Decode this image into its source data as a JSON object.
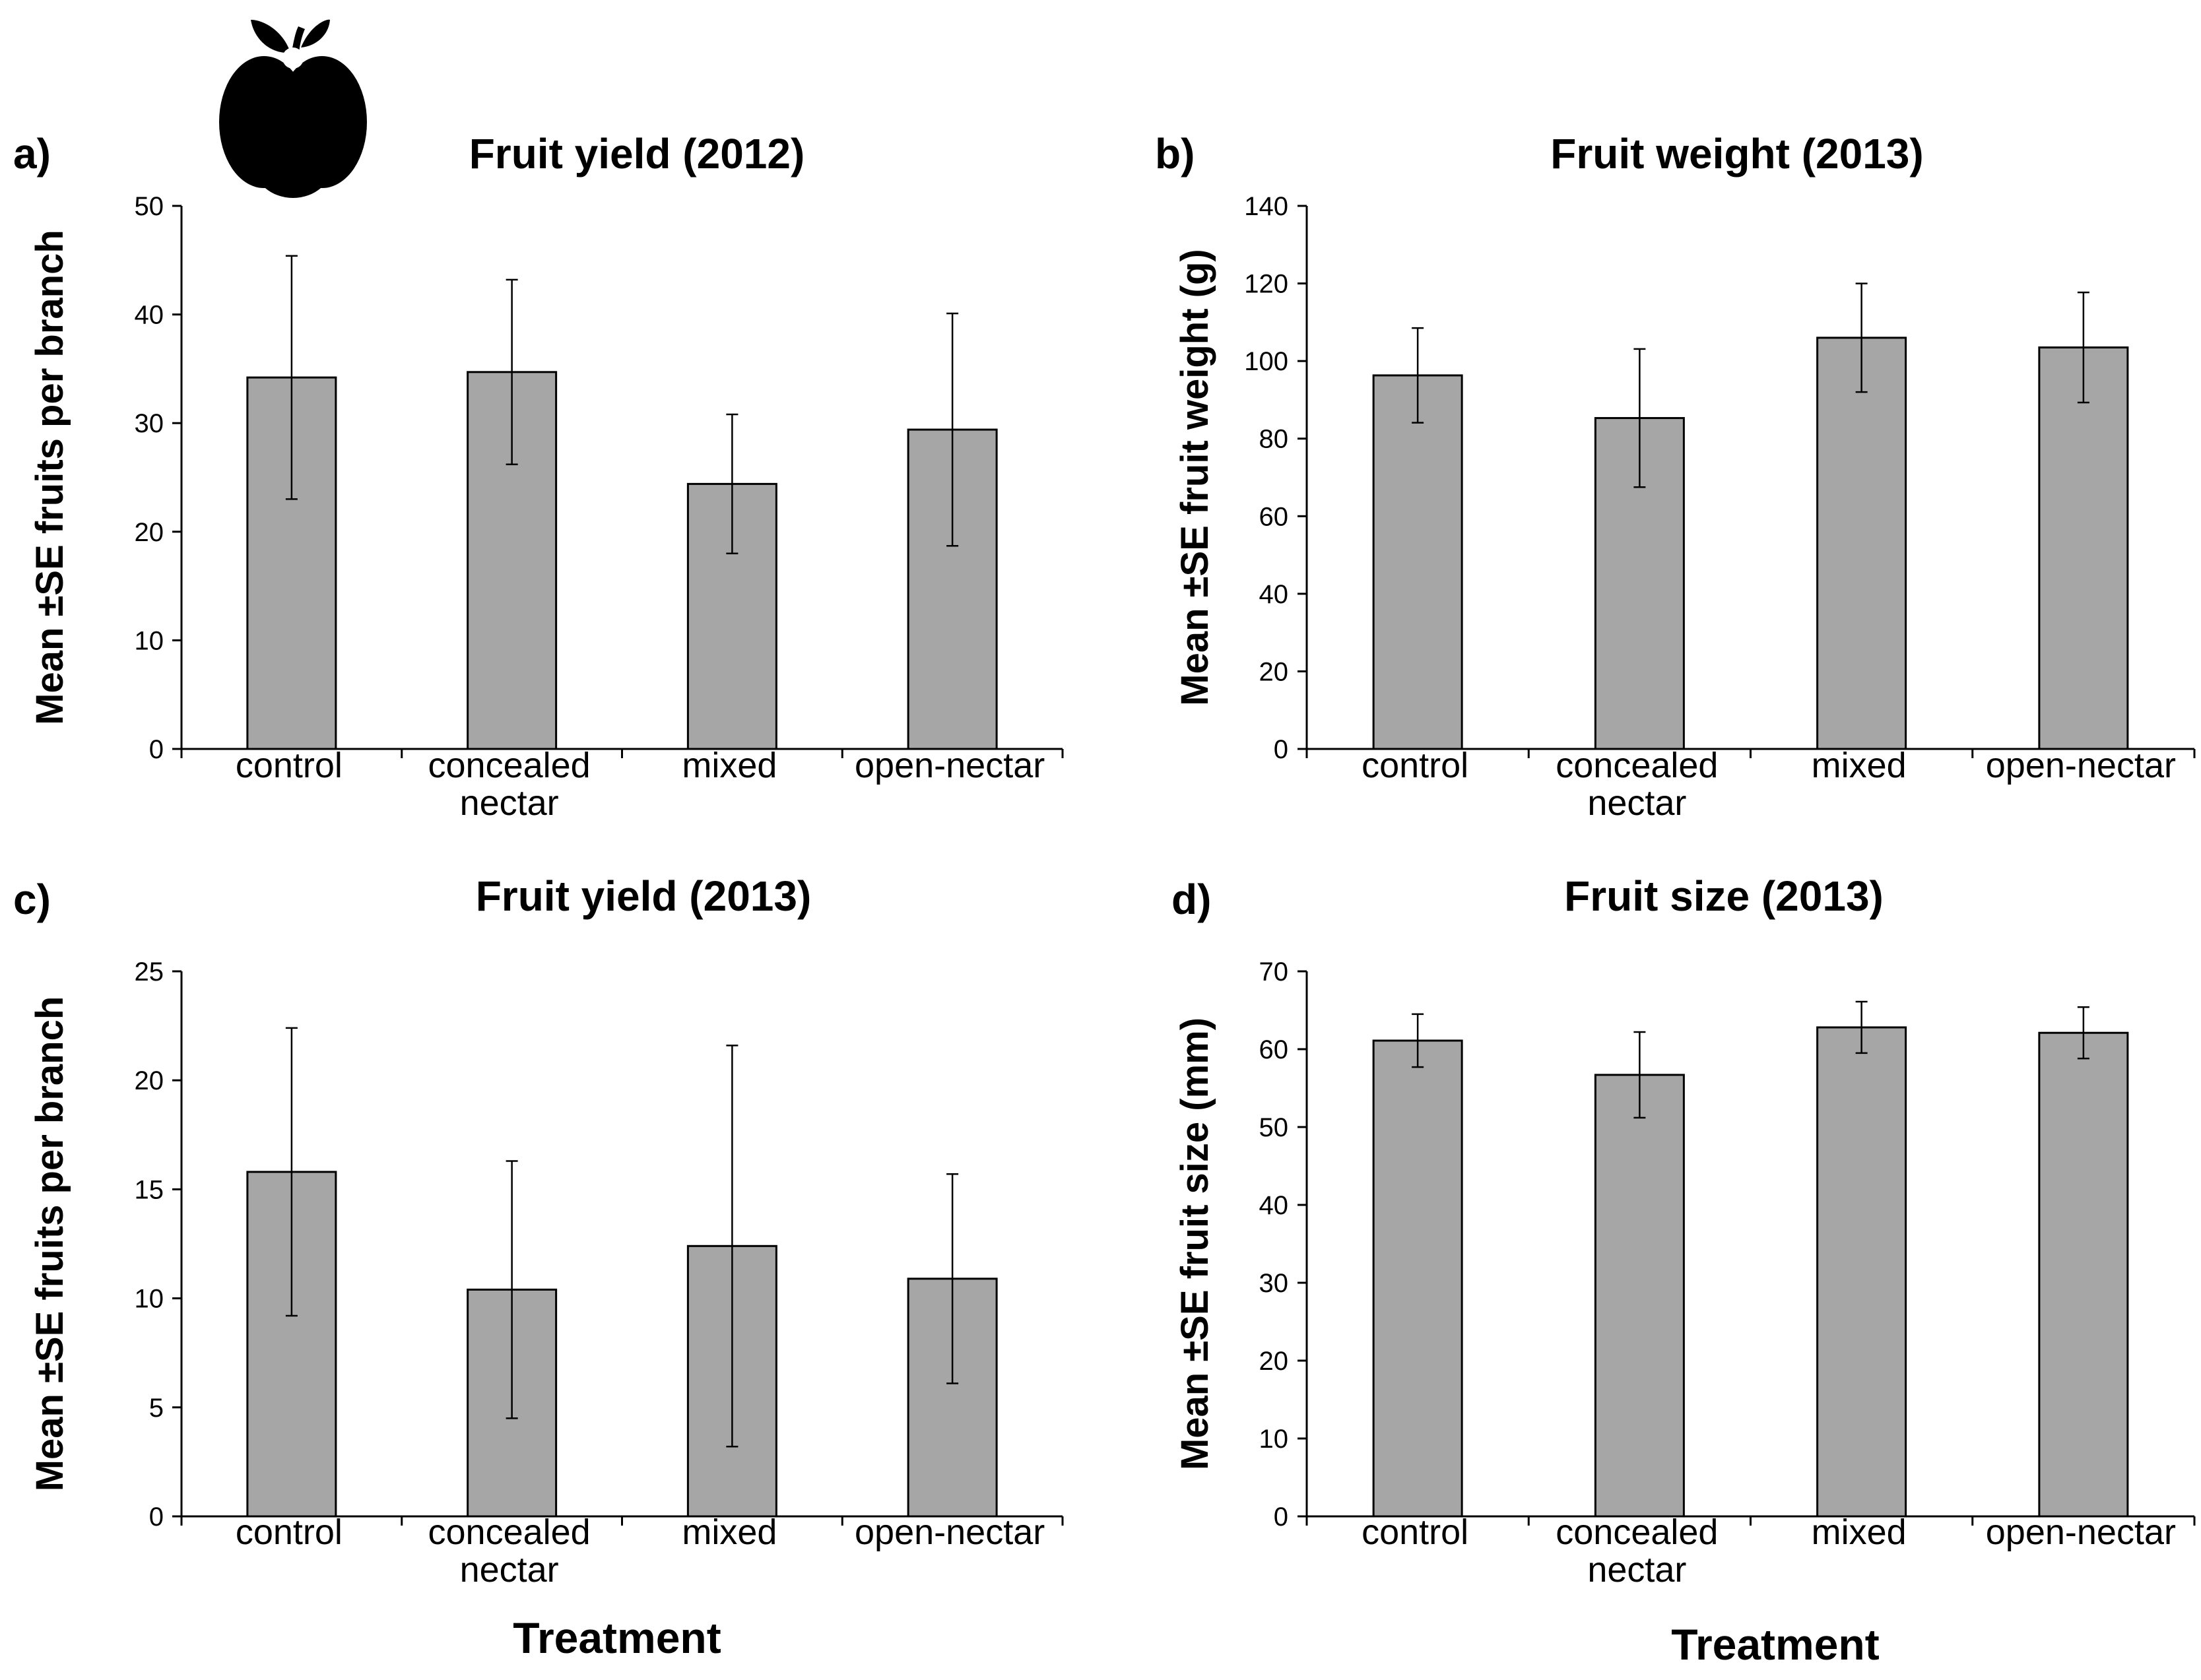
{
  "colors": {
    "bar_fill": "#a6a6a6",
    "bar_stroke": "#000000",
    "axis": "#000000"
  },
  "decoration": {
    "icon": "apple-icon"
  },
  "chart_data": [
    {
      "type": "bar",
      "panel": "a)",
      "title": "Fruit yield (2012)",
      "ylabel": "Mean ±SE fruits per branch",
      "xlabel": "",
      "categories": [
        [
          "control"
        ],
        [
          "concealed",
          "nectar"
        ],
        [
          "mixed"
        ],
        [
          "open-nectar"
        ]
      ],
      "values": [
        34.2,
        34.7,
        24.4,
        29.4
      ],
      "errors": [
        11.2,
        8.5,
        6.4,
        10.7
      ],
      "ylim": [
        0,
        50
      ],
      "yticks": [
        0,
        10,
        20,
        30,
        40,
        50
      ]
    },
    {
      "type": "bar",
      "panel": "b)",
      "title": "Fruit weight (2013)",
      "ylabel": "Mean ±SE fruit weight (g)",
      "xlabel": "",
      "categories": [
        [
          "control"
        ],
        [
          "concealed",
          "nectar"
        ],
        [
          "mixed"
        ],
        [
          "open-nectar"
        ]
      ],
      "values": [
        96.3,
        85.3,
        106.0,
        103.5
      ],
      "errors": [
        12.2,
        17.8,
        14.0,
        14.2
      ],
      "ylim": [
        0,
        140
      ],
      "yticks": [
        0,
        20,
        40,
        60,
        80,
        100,
        120,
        140
      ]
    },
    {
      "type": "bar",
      "panel": "c)",
      "title": "Fruit yield (2013)",
      "ylabel": "Mean ±SE fruits per branch",
      "xlabel": "Treatment",
      "categories": [
        [
          "control"
        ],
        [
          "concealed",
          "nectar"
        ],
        [
          "mixed"
        ],
        [
          "open-nectar"
        ]
      ],
      "values": [
        15.8,
        10.4,
        12.4,
        10.9
      ],
      "errors": [
        6.6,
        5.9,
        9.2,
        4.8
      ],
      "ylim": [
        0,
        25
      ],
      "yticks": [
        0,
        5,
        10,
        15,
        20,
        25
      ]
    },
    {
      "type": "bar",
      "panel": "d)",
      "title": "Fruit size (2013)",
      "ylabel": "Mean ±SE fruit size (mm)",
      "xlabel": "Treatment",
      "categories": [
        [
          "control"
        ],
        [
          "concealed",
          "nectar"
        ],
        [
          "mixed"
        ],
        [
          "open-nectar"
        ]
      ],
      "values": [
        61.1,
        56.7,
        62.8,
        62.1
      ],
      "errors": [
        3.4,
        5.5,
        3.3,
        3.3
      ],
      "ylim": [
        0,
        70
      ],
      "yticks": [
        0,
        10,
        20,
        30,
        40,
        50,
        60,
        70
      ]
    }
  ]
}
